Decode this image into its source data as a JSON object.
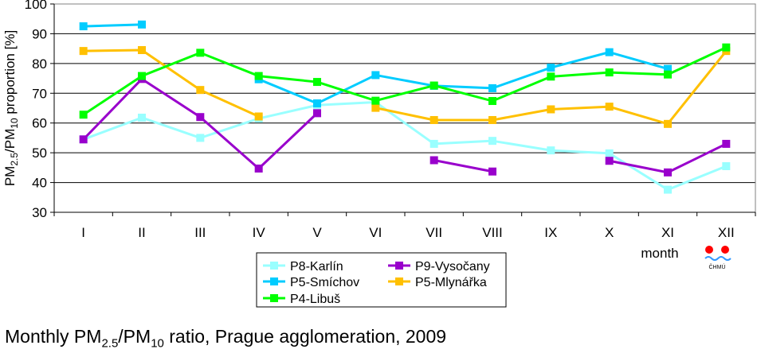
{
  "chart_data": {
    "type": "line",
    "ylabel": {
      "pre": "PM",
      "sub1": "2.5",
      "mid": "/PM",
      "sub2": "10",
      "post": " proportion [%]"
    },
    "xlabel": "month",
    "ylim": [
      30,
      100
    ],
    "yticks": [
      30,
      40,
      50,
      60,
      70,
      80,
      90,
      100
    ],
    "grid": true,
    "legend_position": "bottom-center",
    "categories": [
      "I",
      "II",
      "III",
      "IV",
      "V",
      "VI",
      "VII",
      "VIII",
      "IX",
      "X",
      "XI",
      "XII"
    ],
    "series": [
      {
        "name": "P8-Karlín",
        "color": "#99ffff",
        "values": [
          54.5,
          61.8,
          55,
          61.5,
          66,
          67,
          53,
          54,
          50.8,
          49.8,
          37.6,
          45.5
        ]
      },
      {
        "name": "P9-Vysočany",
        "color": "#9900cc",
        "values": [
          54.5,
          74.8,
          62,
          44.7,
          63.3,
          null,
          47.5,
          43.7,
          null,
          47.3,
          43.4,
          53
        ]
      },
      {
        "name": "P5-Smíchov",
        "color": "#00ccff",
        "values": [
          92.5,
          93.1,
          null,
          74.7,
          66.6,
          76.1,
          72.5,
          71.7,
          78.6,
          83.8,
          78.2,
          null
        ]
      },
      {
        "name": "P5-Mlynářka",
        "color": "#ffc000",
        "values": [
          84.2,
          84.5,
          71.1,
          62.2,
          null,
          65.1,
          61,
          61,
          64.6,
          65.5,
          59.7,
          84.2
        ]
      },
      {
        "name": "P4-Libuš",
        "color": "#00ff00",
        "values": [
          62.8,
          75.8,
          83.6,
          75.8,
          73.8,
          67.5,
          72.6,
          67.4,
          75.6,
          77,
          76.3,
          85.4
        ]
      }
    ]
  },
  "caption": {
    "pre": "Monthly PM",
    "sub1": "2.5",
    "mid": "/PM",
    "sub2": "10",
    "post": " ratio, Prague agglomeration, 2009"
  },
  "logo": {
    "text": "ČHMÚ"
  }
}
